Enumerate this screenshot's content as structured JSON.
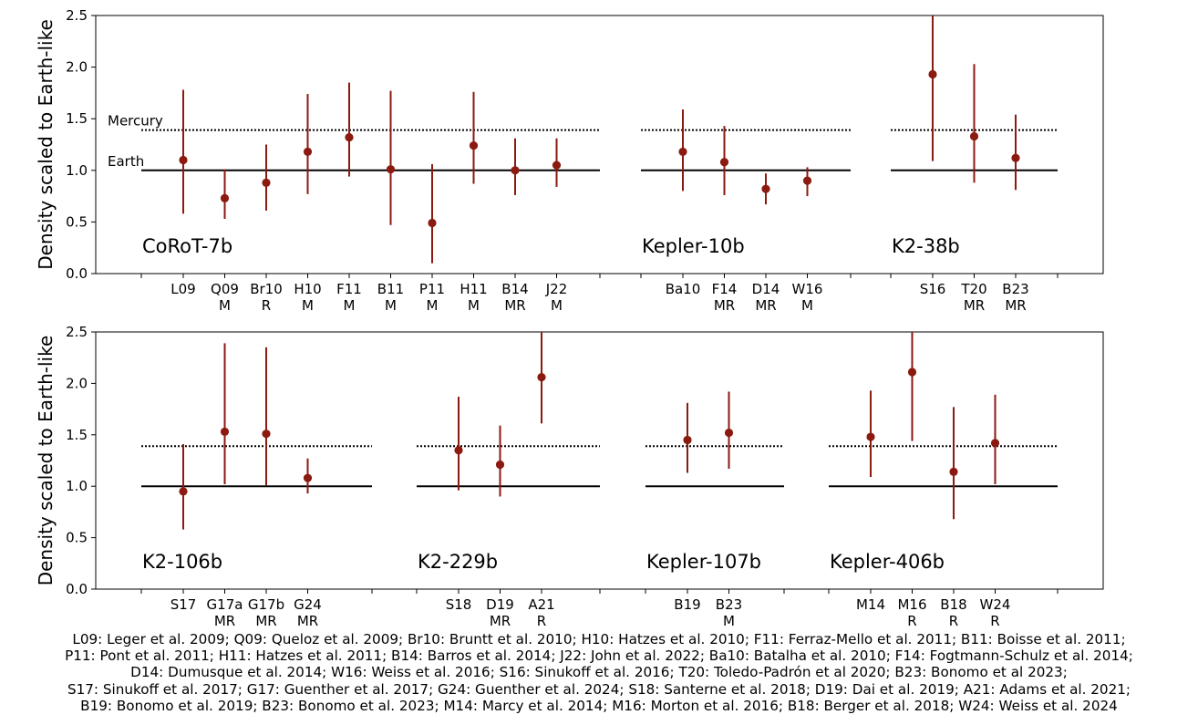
{
  "chart_data": [
    {
      "type": "errorbar",
      "ylabel": "Density scaled to Earth-like",
      "ylim": [
        0,
        2.5
      ],
      "yticks": [
        "0.0",
        "0.5",
        "1.0",
        "1.5",
        "2.0",
        "2.5"
      ],
      "reference_lines": [
        {
          "name": "Mercury",
          "value": 1.39,
          "style": "dotted"
        },
        {
          "name": "Earth",
          "value": 1.0,
          "style": "solid"
        }
      ],
      "groups": [
        {
          "planet": "CoRoT-7b",
          "points": [
            {
              "ref": "L09",
              "method": "",
              "value": 1.1,
              "low": 0.58,
              "high": 1.78
            },
            {
              "ref": "Q09",
              "method": "M",
              "value": 0.73,
              "low": 0.53,
              "high": 1.01
            },
            {
              "ref": "Br10",
              "method": "R",
              "value": 0.88,
              "low": 0.61,
              "high": 1.25
            },
            {
              "ref": "H10",
              "method": "M",
              "value": 1.18,
              "low": 0.77,
              "high": 1.74
            },
            {
              "ref": "F11",
              "method": "M",
              "value": 1.32,
              "low": 0.94,
              "high": 1.85
            },
            {
              "ref": "B11",
              "method": "M",
              "value": 1.01,
              "low": 0.47,
              "high": 1.77
            },
            {
              "ref": "P11",
              "method": "M",
              "value": 0.49,
              "low": 0.1,
              "high": 1.06
            },
            {
              "ref": "H11",
              "method": "M",
              "value": 1.24,
              "low": 0.87,
              "high": 1.76
            },
            {
              "ref": "B14",
              "method": "MR",
              "value": 1.0,
              "low": 0.76,
              "high": 1.31
            },
            {
              "ref": "J22",
              "method": "M",
              "value": 1.05,
              "low": 0.84,
              "high": 1.31
            }
          ]
        },
        {
          "planet": "Kepler-10b",
          "points": [
            {
              "ref": "Ba10",
              "method": "",
              "value": 1.18,
              "low": 0.8,
              "high": 1.59
            },
            {
              "ref": "F14",
              "method": "MR",
              "value": 1.08,
              "low": 0.76,
              "high": 1.43
            },
            {
              "ref": "D14",
              "method": "MR",
              "value": 0.82,
              "low": 0.67,
              "high": 0.97
            },
            {
              "ref": "W16",
              "method": "M",
              "value": 0.9,
              "low": 0.75,
              "high": 1.03
            }
          ]
        },
        {
          "planet": "K2-38b",
          "points": [
            {
              "ref": "S16",
              "method": "",
              "value": 1.93,
              "low": 1.09,
              "high": 2.5
            },
            {
              "ref": "T20",
              "method": "MR",
              "value": 1.33,
              "low": 0.88,
              "high": 2.03
            },
            {
              "ref": "B23",
              "method": "MR",
              "value": 1.12,
              "low": 0.81,
              "high": 1.54
            }
          ]
        }
      ]
    },
    {
      "type": "errorbar",
      "ylabel": "Density scaled to Earth-like",
      "ylim": [
        0,
        2.5
      ],
      "yticks": [
        "0.0",
        "0.5",
        "1.0",
        "1.5",
        "2.0",
        "2.5"
      ],
      "reference_lines": [
        {
          "name": "Mercury",
          "value": 1.39,
          "style": "dotted"
        },
        {
          "name": "Earth",
          "value": 1.0,
          "style": "solid"
        }
      ],
      "groups": [
        {
          "planet": "K2-106b",
          "points": [
            {
              "ref": "S17",
              "method": "",
              "value": 0.95,
              "low": 0.58,
              "high": 1.41
            },
            {
              "ref": "G17a",
              "method": "MR",
              "value": 1.53,
              "low": 1.02,
              "high": 2.39
            },
            {
              "ref": "G17b",
              "method": "MR",
              "value": 1.51,
              "low": 1.01,
              "high": 2.35
            },
            {
              "ref": "G24",
              "method": "MR",
              "value": 1.08,
              "low": 0.93,
              "high": 1.27
            }
          ]
        },
        {
          "planet": "K2-229b",
          "points": [
            {
              "ref": "S18",
              "method": "",
              "value": 1.35,
              "low": 0.96,
              "high": 1.87
            },
            {
              "ref": "D19",
              "method": "MR",
              "value": 1.21,
              "low": 0.9,
              "high": 1.59
            },
            {
              "ref": "A21",
              "method": "R",
              "value": 2.06,
              "low": 1.61,
              "high": 2.5
            }
          ]
        },
        {
          "planet": "Kepler-107b",
          "points": [
            {
              "ref": "B19",
              "method": "",
              "value": 1.45,
              "low": 1.13,
              "high": 1.81
            },
            {
              "ref": "B23",
              "method": "M",
              "value": 1.52,
              "low": 1.17,
              "high": 1.92
            }
          ]
        },
        {
          "planet": "Kepler-406b",
          "points": [
            {
              "ref": "M14",
              "method": "",
              "value": 1.48,
              "low": 1.09,
              "high": 1.93
            },
            {
              "ref": "M16",
              "method": "R",
              "value": 2.11,
              "low": 1.44,
              "high": 2.5
            },
            {
              "ref": "B18",
              "method": "R",
              "value": 1.14,
              "low": 0.68,
              "high": 1.77
            },
            {
              "ref": "W24",
              "method": "R",
              "value": 1.42,
              "low": 1.02,
              "high": 1.89
            }
          ]
        }
      ]
    }
  ],
  "caption": {
    "lines": [
      "L09: Leger et al. 2009; Q09: Queloz et al. 2009; Br10: Bruntt et al. 2010; H10: Hatzes et al. 2010; F11: Ferraz-Mello et al. 2011; B11: Boisse et al. 2011;",
      "P11: Pont et al. 2011; H11: Hatzes et al. 2011; B14: Barros et al. 2014; J22: John et al. 2022; Ba10: Batalha et al. 2010; F14: Fogtmann-Schulz et al. 2014;",
      "D14: Dumusque et al. 2014; W16: Weiss et al. 2016; S16: Sinukoff et al. 2016; T20: Toledo-Padrón et al 2020; B23: Bonomo et al 2023;",
      "S17: Sinukoff et al. 2017; G17: Guenther et al. 2017; G24: Guenther et al. 2024; S18: Santerne et al. 2018; D19: Dai et al. 2019; A21: Adams et al. 2021;",
      "B19: Bonomo et al. 2019; B23: Bonomo et al. 2023; M14: Marcy et al. 2014; M16: Morton et al. 2016; B18: Berger et al. 2018; W24: Weiss et al. 2024"
    ]
  },
  "colors": {
    "errorbar": "#8b1a10",
    "axis": "#000000"
  }
}
